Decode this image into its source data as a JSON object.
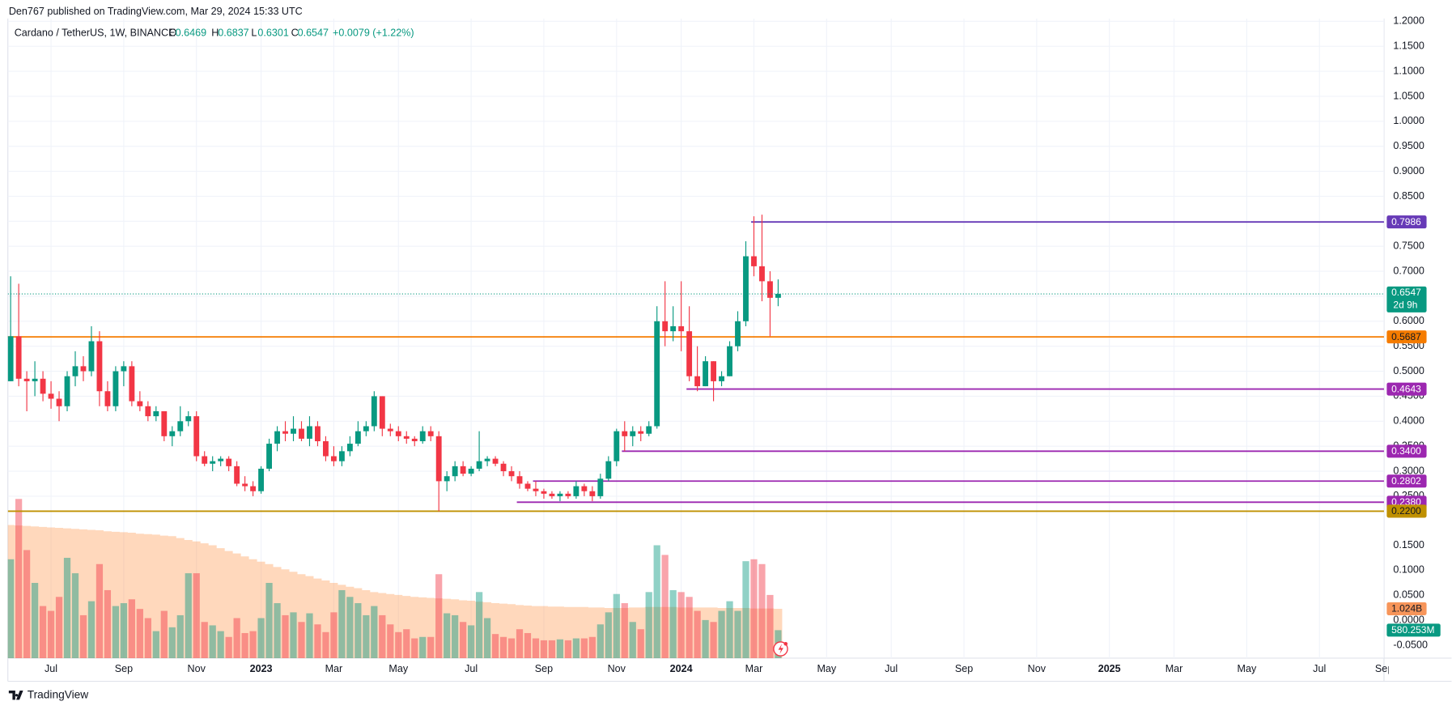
{
  "published": "Den767 published on TradingView.com, Mar 29, 2024 15:33 UTC",
  "brand": "TradingView",
  "chart_data": {
    "type": "candlestick",
    "symbol": "Cardano / TetherUS, 1W, BINANCE",
    "ohlc_letters": [
      "O",
      "H",
      "L",
      "C"
    ],
    "change": "+0.0079 (+1.22%)",
    "countdown": "2d 9h",
    "up_color": "#089981",
    "down_color": "#f23645",
    "volume_up_color": "rgba(8,153,129,0.45)",
    "volume_down_color": "rgba(242,54,69,0.45)",
    "volume_ma_color": "rgba(255,152,80,0.38)",
    "volume_ma_tag_color": "#f7955a",
    "grid": true,
    "ylim": [
      -0.074,
      1.2056
    ],
    "yticks": [
      {
        "value": 1.2,
        "label": "1.2000"
      },
      {
        "value": 1.15,
        "label": "1.1500"
      },
      {
        "value": 1.1,
        "label": "1.1000"
      },
      {
        "value": 1.05,
        "label": "1.0500"
      },
      {
        "value": 1,
        "label": "1.0000"
      },
      {
        "value": 0.95,
        "label": "0.9500"
      },
      {
        "value": 0.9,
        "label": "0.9000"
      },
      {
        "value": 0.85,
        "label": "0.8500"
      },
      {
        "value": 0.8,
        "label": "0.8000"
      },
      {
        "value": 0.75,
        "label": "0.7500"
      },
      {
        "value": 0.7,
        "label": "0.7000"
      },
      {
        "value": 0.65,
        "label": "0.6500"
      },
      {
        "value": 0.6,
        "label": "0.6000"
      },
      {
        "value": 0.55,
        "label": "0.5500"
      },
      {
        "value": 0.5,
        "label": "0.5000"
      },
      {
        "value": 0.45,
        "label": "0.4500"
      },
      {
        "value": 0.4,
        "label": "0.4000"
      },
      {
        "value": 0.35,
        "label": "0.3500"
      },
      {
        "value": 0.3,
        "label": "0.3000"
      },
      {
        "value": 0.25,
        "label": "0.2500"
      }
    ],
    "y2lim": [
      -0.0759,
      1.2037
    ],
    "y2ticks": [
      {
        "value": 0.15,
        "label": "0.1500"
      },
      {
        "value": 0.1,
        "label": "0.1000"
      },
      {
        "value": 0.05,
        "label": "0.0500"
      },
      {
        "value": 0,
        "label": "0.0000"
      },
      {
        "value": -0.05,
        "label": "-0.0500"
      }
    ],
    "levels": [
      {
        "value": 0.7986,
        "color": "#673ab7",
        "text_color": "#ffffff"
      },
      {
        "value": 0.5687,
        "color": "#f57c00",
        "text_color": "#131722"
      },
      {
        "value": 0.4643,
        "color": "#9c27b0",
        "text_color": "#ffffff"
      },
      {
        "value": 0.34,
        "label": "0.3400",
        "color": "#9c27b0",
        "text_color": "#ffffff"
      },
      {
        "value": 0.2802,
        "color": "#9c27b0",
        "text_color": "#ffffff"
      },
      {
        "value": 0.238,
        "label": "0.2380",
        "color": "#9c27b0",
        "text_color": "#ffffff"
      },
      {
        "value": 0.22,
        "label": "0.2200",
        "color": "#bf9000",
        "text_color": "#131722"
      }
    ],
    "volume_ma_label": "1.024B",
    "volume_label": "580.253M",
    "categories": [
      null,
      null,
      null,
      null,
      null,
      "Jul",
      null,
      null,
      null,
      null,
      null,
      null,
      null,
      null,
      "Sep",
      null,
      null,
      null,
      null,
      null,
      null,
      null,
      null,
      "Nov",
      null,
      null,
      null,
      null,
      null,
      null,
      null,
      "2023",
      null,
      null,
      null,
      null,
      null,
      null,
      null,
      null,
      "Mar",
      null,
      null,
      null,
      null,
      null,
      null,
      null,
      "May",
      null,
      null,
      null,
      null,
      null,
      null,
      null,
      null,
      "Jul",
      null,
      null,
      null,
      null,
      null,
      null,
      null,
      null,
      "Sep",
      null,
      null,
      null,
      null,
      null,
      null,
      null,
      null,
      "Nov",
      null,
      null,
      null,
      null,
      null,
      null,
      null,
      "2024",
      null,
      null,
      null,
      null,
      null,
      null,
      null,
      null,
      "Mar",
      null,
      null,
      null,
      null,
      null,
      null,
      null,
      null,
      "May",
      null,
      null,
      null,
      null,
      null,
      null,
      null,
      "Jul",
      null,
      null,
      null,
      null,
      null,
      null,
      null,
      null,
      "Sep",
      null,
      null,
      null,
      null,
      null,
      null,
      null,
      null,
      "Nov",
      null,
      null,
      null,
      null,
      null,
      null,
      null,
      null,
      "2025",
      null,
      null,
      null,
      null,
      null,
      null,
      null,
      "Mar",
      null,
      null,
      null,
      null,
      null,
      null,
      null,
      null,
      "May",
      null,
      null,
      null,
      null,
      null,
      null,
      null,
      null,
      "Jul",
      null,
      null,
      null,
      null,
      null,
      null,
      null,
      "Sep"
    ],
    "open": [
      0.48,
      0.57,
      0.485,
      0.48,
      0.485,
      0.455,
      0.445,
      0.43,
      0.49,
      0.51,
      0.5,
      0.56,
      0.46,
      0.43,
      0.5,
      0.51,
      0.44,
      0.43,
      0.41,
      0.42,
      0.37,
      0.38,
      0.4,
      0.41,
      0.33,
      0.315,
      0.32,
      0.325,
      0.31,
      0.275,
      0.27,
      0.26,
      0.305,
      0.355,
      0.38,
      0.375,
      0.385,
      0.365,
      0.39,
      0.36,
      0.33,
      0.32,
      0.34,
      0.355,
      0.38,
      0.39,
      0.45,
      0.385,
      0.38,
      0.37,
      0.365,
      0.36,
      0.38,
      0.37,
      0.28,
      0.29,
      0.31,
      0.295,
      0.305,
      0.32,
      0.325,
      0.315,
      0.3,
      0.29,
      0.275,
      0.265,
      0.26,
      0.255,
      0.25,
      0.255,
      0.25,
      0.27,
      0.26,
      0.25,
      0.285,
      0.32,
      0.38,
      0.37,
      0.38,
      0.375,
      0.39,
      0.6,
      0.58,
      0.59,
      0.58,
      0.49,
      0.47,
      0.52,
      0.48,
      0.49,
      0.55,
      0.6,
      0.73,
      0.71,
      0.68,
      0.6469,
      null,
      null,
      null,
      null,
      null,
      null,
      null,
      null,
      null,
      null,
      null,
      null,
      null,
      null,
      null,
      null,
      null,
      null,
      null,
      null,
      null,
      null,
      null,
      null,
      null,
      null,
      null,
      null,
      null,
      null,
      null,
      null,
      null,
      null,
      null,
      null,
      null,
      null,
      null,
      null,
      null,
      null,
      null,
      null,
      null,
      null,
      null,
      null,
      null,
      null,
      null,
      null,
      null,
      null,
      null,
      null,
      null,
      null,
      null,
      null,
      null,
      null,
      null,
      null,
      null,
      null,
      null,
      null,
      null,
      null,
      null,
      null,
      null,
      null,
      null
    ],
    "high": [
      0.69,
      0.675,
      0.5,
      0.52,
      0.5,
      0.48,
      0.46,
      0.5,
      0.54,
      0.53,
      0.59,
      0.58,
      0.48,
      0.51,
      0.52,
      0.52,
      0.46,
      0.44,
      0.43,
      0.42,
      0.39,
      0.43,
      0.42,
      0.42,
      0.34,
      0.33,
      0.33,
      0.33,
      0.32,
      0.29,
      0.28,
      0.31,
      0.365,
      0.39,
      0.4,
      0.41,
      0.4,
      0.41,
      0.4,
      0.37,
      0.35,
      0.35,
      0.37,
      0.4,
      0.4,
      0.46,
      0.45,
      0.395,
      0.39,
      0.38,
      0.37,
      0.39,
      0.39,
      0.38,
      0.3,
      0.32,
      0.32,
      0.31,
      0.38,
      0.33,
      0.33,
      0.32,
      0.31,
      0.3,
      0.28,
      0.28,
      0.265,
      0.26,
      0.26,
      0.26,
      0.28,
      0.275,
      0.27,
      0.295,
      0.33,
      0.385,
      0.4,
      0.39,
      0.39,
      0.4,
      0.63,
      0.68,
      0.63,
      0.68,
      0.63,
      0.55,
      0.53,
      0.52,
      0.5,
      0.56,
      0.62,
      0.76,
      0.81,
      0.8132,
      0.7,
      0.6837,
      null,
      null,
      null,
      null,
      null,
      null,
      null,
      null,
      null,
      null,
      null,
      null,
      null,
      null,
      null,
      null,
      null,
      null,
      null,
      null,
      null,
      null,
      null,
      null,
      null,
      null,
      null,
      null,
      null,
      null,
      null,
      null,
      null,
      null,
      null,
      null,
      null,
      null,
      null,
      null,
      null,
      null,
      null,
      null,
      null,
      null,
      null,
      null,
      null,
      null,
      null,
      null,
      null,
      null,
      null,
      null,
      null,
      null,
      null,
      null,
      null,
      null,
      null,
      null,
      null,
      null,
      null,
      null,
      null,
      null,
      null,
      null,
      null,
      null,
      null
    ],
    "low": [
      0.48,
      0.47,
      0.42,
      0.45,
      0.44,
      0.425,
      0.4,
      0.42,
      0.47,
      0.48,
      0.49,
      0.43,
      0.42,
      0.42,
      0.47,
      0.43,
      0.42,
      0.4,
      0.4,
      0.36,
      0.35,
      0.37,
      0.39,
      0.32,
      0.31,
      0.3,
      0.31,
      0.3,
      0.27,
      0.26,
      0.25,
      0.255,
      0.3,
      0.34,
      0.36,
      0.36,
      0.36,
      0.35,
      0.35,
      0.32,
      0.31,
      0.31,
      0.33,
      0.35,
      0.37,
      0.38,
      0.37,
      0.37,
      0.36,
      0.355,
      0.35,
      0.355,
      0.36,
      0.22,
      0.26,
      0.28,
      0.29,
      0.29,
      0.3,
      0.31,
      0.31,
      0.29,
      0.28,
      0.265,
      0.26,
      0.25,
      0.245,
      0.245,
      0.24,
      0.245,
      0.245,
      0.25,
      0.24,
      0.245,
      0.28,
      0.31,
      0.34,
      0.35,
      0.36,
      0.37,
      0.385,
      0.55,
      0.56,
      0.54,
      0.48,
      0.46,
      0.47,
      0.44,
      0.47,
      0.49,
      0.54,
      0.59,
      0.69,
      0.64,
      0.57,
      0.6301,
      null,
      null,
      null,
      null,
      null,
      null,
      null,
      null,
      null,
      null,
      null,
      null,
      null,
      null,
      null,
      null,
      null,
      null,
      null,
      null,
      null,
      null,
      null,
      null,
      null,
      null,
      null,
      null,
      null,
      null,
      null,
      null,
      null,
      null,
      null,
      null,
      null,
      null,
      null,
      null,
      null,
      null,
      null,
      null,
      null,
      null,
      null,
      null,
      null,
      null,
      null,
      null,
      null,
      null,
      null,
      null,
      null,
      null,
      null,
      null,
      null,
      null,
      null,
      null,
      null,
      null,
      null,
      null,
      null,
      null,
      null,
      null,
      null,
      null,
      null
    ],
    "close": [
      0.57,
      0.485,
      0.48,
      0.485,
      0.455,
      0.445,
      0.43,
      0.49,
      0.51,
      0.5,
      0.56,
      0.46,
      0.43,
      0.5,
      0.51,
      0.44,
      0.43,
      0.41,
      0.42,
      0.37,
      0.38,
      0.4,
      0.41,
      0.33,
      0.315,
      0.32,
      0.325,
      0.31,
      0.275,
      0.27,
      0.26,
      0.305,
      0.355,
      0.38,
      0.375,
      0.385,
      0.365,
      0.39,
      0.36,
      0.33,
      0.32,
      0.34,
      0.355,
      0.38,
      0.39,
      0.45,
      0.385,
      0.38,
      0.37,
      0.365,
      0.36,
      0.38,
      0.37,
      0.28,
      0.29,
      0.31,
      0.295,
      0.305,
      0.32,
      0.325,
      0.315,
      0.3,
      0.29,
      0.275,
      0.265,
      0.26,
      0.255,
      0.25,
      0.255,
      0.25,
      0.27,
      0.26,
      0.25,
      0.285,
      0.32,
      0.38,
      0.37,
      0.38,
      0.375,
      0.39,
      0.6,
      0.58,
      0.59,
      0.58,
      0.49,
      0.47,
      0.52,
      0.48,
      0.49,
      0.55,
      0.6,
      0.73,
      0.71,
      0.68,
      0.6469,
      0.6547,
      null,
      null,
      null,
      null,
      null,
      null,
      null,
      null,
      null,
      null,
      null,
      null,
      null,
      null,
      null,
      null,
      null,
      null,
      null,
      null,
      null,
      null,
      null,
      null,
      null,
      null,
      null,
      null,
      null,
      null,
      null,
      null,
      null,
      null,
      null,
      null,
      null,
      null,
      null,
      null,
      null,
      null,
      null,
      null,
      null,
      null,
      null,
      null,
      null,
      null,
      null,
      null,
      null,
      null,
      null,
      null,
      null,
      null,
      null,
      null,
      null,
      null,
      null,
      null,
      null,
      null,
      null,
      null,
      null,
      null,
      null,
      null,
      null,
      null,
      null
    ],
    "volume": [
      2050000000.0,
      3300000000.0,
      2240000000.0,
      1560000000.0,
      1080000000.0,
      980000000.0,
      1270000000.0,
      2080000000.0,
      1760000000.0,
      890000000.0,
      1180000000.0,
      1950000000.0,
      1410000000.0,
      1080000000.0,
      1140000000.0,
      1220000000.0,
      1020000000.0,
      830000000.0,
      560000000.0,
      980000000.0,
      640000000.0,
      890000000.0,
      1760000000.0,
      1760000000.0,
      750000000.0,
      680000000.0,
      560000000.0,
      440000000.0,
      830000000.0,
      520000000.0,
      560000000.0,
      830000000.0,
      1560000000.0,
      1140000000.0,
      890000000.0,
      950000000.0,
      750000000.0,
      930000000.0,
      700000000.0,
      540000000.0,
      950000000.0,
      1410000000.0,
      1270000000.0,
      1140000000.0,
      890000000.0,
      1080000000.0,
      890000000.0,
      700000000.0,
      540000000.0,
      600000000.0,
      410000000.0,
      440000000.0,
      440000000.0,
      1740000000.0,
      930000000.0,
      890000000.0,
      750000000.0,
      680000000.0,
      1370000000.0,
      830000000.0,
      500000000.0,
      440000000.0,
      410000000.0,
      600000000.0,
      520000000.0,
      410000000.0,
      370000000.0,
      370000000.0,
      390000000.0,
      370000000.0,
      410000000.0,
      410000000.0,
      440000000.0,
      700000000.0,
      950000000.0,
      1330000000.0,
      1140000000.0,
      750000000.0,
      600000000.0,
      1370000000.0,
      2340000000.0,
      2140000000.0,
      1410000000.0,
      1370000000.0,
      1270000000.0,
      980000000.0,
      790000000.0,
      750000000.0,
      980000000.0,
      1180000000.0,
      980000000.0,
      2010000000.0,
      2050000000.0,
      1950000000.0,
      1310000000.0,
      580253000,
      null,
      null,
      null,
      null,
      null,
      null,
      null,
      null,
      null,
      null,
      null,
      null,
      null,
      null,
      null,
      null,
      null,
      null,
      null,
      null,
      null,
      null,
      null,
      null,
      null,
      null,
      null,
      null,
      null,
      null,
      null,
      null,
      null,
      null,
      null,
      null,
      null,
      null,
      null,
      null,
      null,
      null,
      null,
      null,
      null,
      null,
      null,
      null,
      null,
      null,
      null,
      null,
      null,
      null,
      null,
      null,
      null,
      null,
      null,
      null,
      null,
      null,
      null,
      null,
      null,
      null,
      null,
      null,
      null,
      null,
      null,
      null,
      null,
      null,
      null
    ],
    "volume_ma": [
      2760000000.0,
      2750000000.0,
      2740000000.0,
      2730000000.0,
      2720000000.0,
      2710000000.0,
      2700000000.0,
      2690000000.0,
      2680000000.0,
      2670000000.0,
      2660000000.0,
      2650000000.0,
      2630000000.0,
      2620000000.0,
      2610000000.0,
      2600000000.0,
      2580000000.0,
      2570000000.0,
      2560000000.0,
      2540000000.0,
      2530000000.0,
      2490000000.0,
      2450000000.0,
      2420000000.0,
      2380000000.0,
      2340000000.0,
      2280000000.0,
      2220000000.0,
      2170000000.0,
      2110000000.0,
      2050000000.0,
      2000000000.0,
      1950000000.0,
      1890000000.0,
      1840000000.0,
      1790000000.0,
      1740000000.0,
      1700000000.0,
      1650000000.0,
      1610000000.0,
      1560000000.0,
      1520000000.0,
      1480000000.0,
      1450000000.0,
      1410000000.0,
      1370000000.0,
      1350000000.0,
      1330000000.0,
      1310000000.0,
      1290000000.0,
      1270000000.0,
      1260000000.0,
      1250000000.0,
      1240000000.0,
      1230000000.0,
      1220000000.0,
      1200000000.0,
      1190000000.0,
      1170000000.0,
      1160000000.0,
      1140000000.0,
      1130000000.0,
      1120000000.0,
      1100000000.0,
      1090000000.0,
      1080000000.0,
      1080000000.0,
      1070000000.0,
      1070000000.0,
      1060000000.0,
      1060000000.0,
      1060000000.0,
      1050000000.0,
      1050000000.0,
      1040000000.0,
      1040000000.0,
      1040000000.0,
      1050000000.0,
      1050000000.0,
      1060000000.0,
      1060000000.0,
      1060000000.0,
      1060000000.0,
      1050000000.0,
      1050000000.0,
      1050000000.0,
      1050000000.0,
      1050000000.0,
      1040000000.0,
      1040000000.0,
      1040000000.0,
      1040000000.0,
      1030000000.0,
      1030000000.0,
      1030000000.0,
      1024000000,
      null,
      null,
      null,
      null,
      null,
      null,
      null,
      null,
      null,
      null,
      null,
      null,
      null,
      null,
      null,
      null,
      null,
      null,
      null,
      null,
      null,
      null,
      null,
      null,
      null,
      null,
      null,
      null,
      null,
      null,
      null,
      null,
      null,
      null,
      null,
      null,
      null,
      null,
      null,
      null,
      null,
      null,
      null,
      null,
      null,
      null,
      null,
      null,
      null,
      null,
      null,
      null,
      null,
      null,
      null,
      null,
      null,
      null,
      null,
      null,
      null,
      null,
      null,
      null,
      null,
      null,
      null,
      null,
      null,
      null,
      null,
      null,
      null,
      null,
      null
    ]
  }
}
